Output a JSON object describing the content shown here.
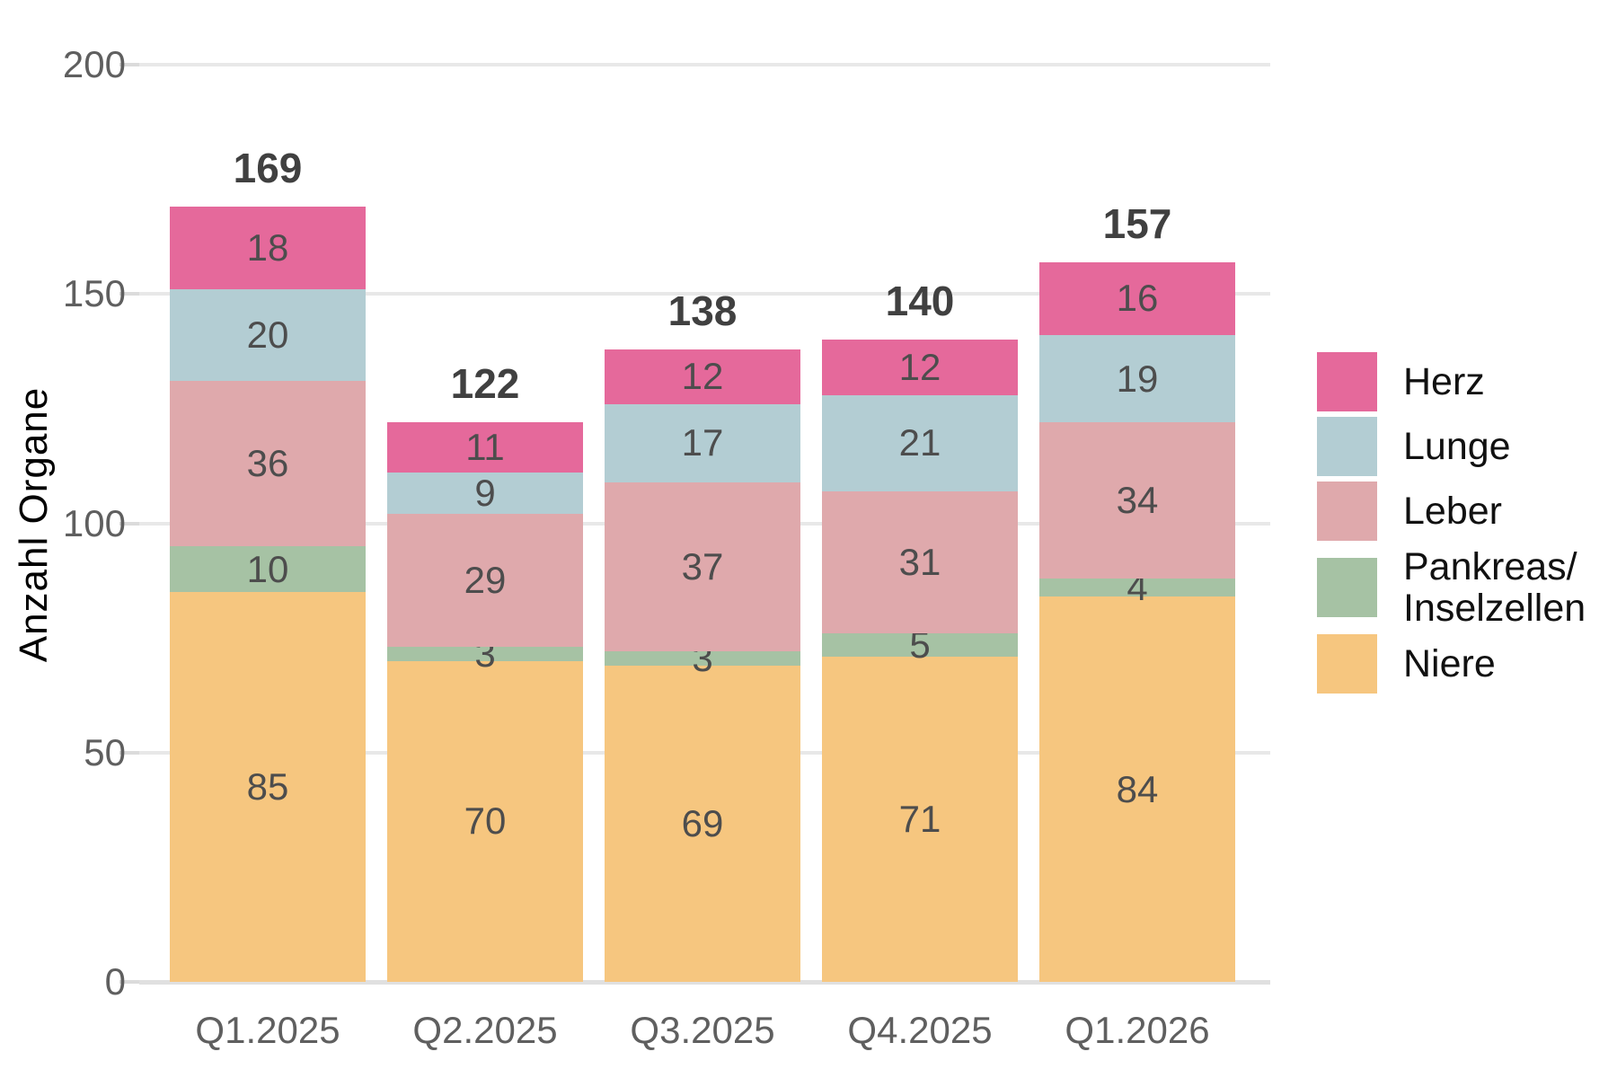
{
  "chart_data": {
    "type": "bar",
    "stacked": true,
    "title": "",
    "xlabel": "",
    "ylabel": "Anzahl Organe",
    "ylim": [
      0,
      200
    ],
    "yticks": [
      0,
      50,
      100,
      150,
      200
    ],
    "grid": "horizontal",
    "legend_position": "right",
    "categories": [
      "Q1.2025",
      "Q2.2025",
      "Q3.2025",
      "Q4.2025",
      "Q1.2026"
    ],
    "series": [
      {
        "name": "Niere",
        "color": "#F6C67F",
        "values": [
          85,
          70,
          69,
          71,
          84
        ]
      },
      {
        "name": "Pankreas/Inselzellen",
        "color": "#A6C2A4",
        "values": [
          10,
          3,
          3,
          5,
          4
        ]
      },
      {
        "name": "Leber",
        "color": "#DFA9AC",
        "values": [
          36,
          29,
          37,
          31,
          34
        ]
      },
      {
        "name": "Lunge",
        "color": "#B3CDD3",
        "values": [
          20,
          9,
          17,
          21,
          19
        ]
      },
      {
        "name": "Herz",
        "color": "#E5699B",
        "values": [
          18,
          11,
          12,
          12,
          16
        ]
      }
    ],
    "totals": [
      169,
      122,
      138,
      140,
      157
    ],
    "legend": [
      {
        "label_lines": [
          "Herz"
        ],
        "color": "#E5699B"
      },
      {
        "label_lines": [
          "Lunge"
        ],
        "color": "#B3CDD3"
      },
      {
        "label_lines": [
          "Leber"
        ],
        "color": "#DFA9AC"
      },
      {
        "label_lines": [
          "Pankreas/",
          "Inselzellen"
        ],
        "color": "#A6C2A4"
      },
      {
        "label_lines": [
          "Niere"
        ],
        "color": "#F6C67F"
      }
    ],
    "colors": {
      "background": "#FFFFFF",
      "gridline": "#E8E8E8",
      "axis_line": "#E0E0E0",
      "tick": "#DBDBDB",
      "segment_label": "#4D4D4D",
      "total_label": "#404040",
      "axis_text": "#5F5F5F",
      "axis_title": "#000000",
      "legend_text": "#111111"
    }
  }
}
